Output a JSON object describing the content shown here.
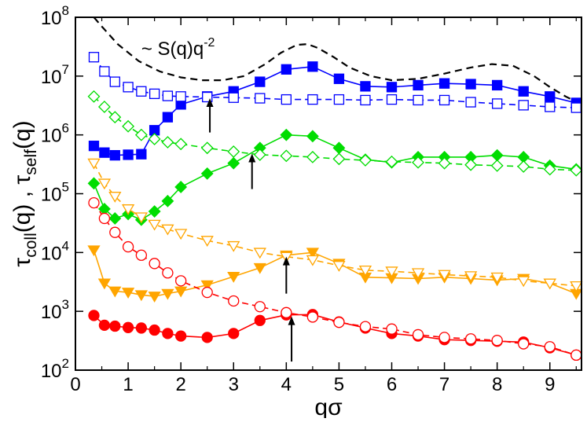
{
  "chart_data": {
    "type": "line",
    "title": "",
    "xlabel": "qσ",
    "ylabel": {
      "tau1": "τ",
      "sub1": "coll",
      "arg1": "(q)",
      "sep": " , ",
      "tau2": "τ",
      "sub2": "self",
      "arg2": "(q)"
    },
    "xlim": [
      0,
      9.6
    ],
    "ylim_log10": [
      2,
      8
    ],
    "yscale": "log",
    "x_ticks": [
      0,
      1,
      2,
      3,
      4,
      5,
      6,
      7,
      8,
      9
    ],
    "y_ticks": [
      {
        "exp": 2,
        "base": "10",
        "sup": "2"
      },
      {
        "exp": 3,
        "base": "10",
        "sup": "3"
      },
      {
        "exp": 4,
        "base": "10",
        "sup": "4"
      },
      {
        "exp": 5,
        "base": "10",
        "sup": "5"
      },
      {
        "exp": 6,
        "base": "10",
        "sup": "6"
      },
      {
        "exp": 7,
        "base": "10",
        "sup": "7"
      },
      {
        "exp": 8,
        "base": "10",
        "sup": "8"
      }
    ],
    "annotation": {
      "prefix": "~ S(q)q",
      "sup": "-2",
      "x": 1.25,
      "y": 30000000
    },
    "arrows": [
      {
        "x": 2.55,
        "y_from": 1100000,
        "y_to": 4200000
      },
      {
        "x": 3.35,
        "y_from": 120000,
        "y_to": 480000
      },
      {
        "x": 4.0,
        "y_from": 2000,
        "y_to": 8500
      },
      {
        "x": 4.1,
        "y_from": 140,
        "y_to": 820
      }
    ],
    "series": [
      {
        "name": "S(q)q^-2",
        "color": "#000000",
        "dash": "9,6",
        "marker": "none",
        "x": [
          0.35,
          0.5,
          0.8,
          1.2,
          1.6,
          2.0,
          2.4,
          2.8,
          3.2,
          3.6,
          3.9,
          4.2,
          4.4,
          4.6,
          4.9,
          5.2,
          5.6,
          6.0,
          6.5,
          7.0,
          7.5,
          7.9,
          8.3,
          8.7,
          9.0,
          9.3,
          9.55
        ],
        "y": [
          100000000,
          70000000,
          35000000,
          18000000,
          12000000,
          9500000,
          8500000,
          8500000,
          10000000,
          16000000,
          25000000,
          34000000,
          35000000,
          30000000,
          21000000,
          14000000,
          10000000,
          8500000,
          9000000,
          11000000,
          14000000,
          16000000,
          15000000,
          10000000,
          6500000,
          4500000,
          3500000
        ]
      },
      {
        "name": "tau_coll blue",
        "color": "#0000ff",
        "dash": "",
        "marker": "square",
        "filled": true,
        "x": [
          0.35,
          0.55,
          0.75,
          1.0,
          1.25,
          1.5,
          1.75,
          2.0,
          2.5,
          3.0,
          3.5,
          4.0,
          4.5,
          5.0,
          5.5,
          6.0,
          6.5,
          7.0,
          7.5,
          8.0,
          8.5,
          9.0,
          9.5
        ],
        "y": [
          650000,
          500000,
          450000,
          460000,
          470000,
          1200000,
          2000000,
          3300000,
          4500000,
          5500000,
          8000000,
          13000000,
          14500000,
          9000000,
          6700000,
          6500000,
          7000000,
          7500000,
          7300000,
          7000000,
          5500000,
          4500000,
          3500000
        ]
      },
      {
        "name": "tau_self blue",
        "color": "#0000ff",
        "dash": "8,5",
        "marker": "square",
        "filled": false,
        "x": [
          0.35,
          0.55,
          0.75,
          1.0,
          1.25,
          1.5,
          1.75,
          2.0,
          2.5,
          3.0,
          3.5,
          4.0,
          4.5,
          5.0,
          5.5,
          6.0,
          6.5,
          7.0,
          7.5,
          8.0,
          8.5,
          9.0,
          9.5
        ],
        "y": [
          21000000,
          12000000,
          8000000,
          6500000,
          5500000,
          5000000,
          4600000,
          4500000,
          4400000,
          4300000,
          4200000,
          4000000,
          4000000,
          4000000,
          3900000,
          4000000,
          3900000,
          3900000,
          3600000,
          3400000,
          3200000,
          3000000,
          2900000
        ]
      },
      {
        "name": "tau_coll green",
        "color": "#00dd00",
        "dash": "",
        "marker": "diamond",
        "filled": true,
        "x": [
          0.35,
          0.55,
          0.75,
          1.0,
          1.25,
          1.5,
          1.75,
          2.0,
          2.5,
          3.0,
          3.5,
          4.0,
          4.5,
          5.0,
          5.5,
          6.0,
          6.5,
          7.0,
          7.5,
          8.0,
          8.5,
          9.0,
          9.5
        ],
        "y": [
          150000,
          55000,
          38000,
          45000,
          36000,
          50000,
          75000,
          130000,
          220000,
          330000,
          600000,
          1000000,
          950000,
          600000,
          380000,
          340000,
          420000,
          420000,
          420000,
          450000,
          420000,
          300000,
          260000
        ]
      },
      {
        "name": "tau_self green",
        "color": "#00dd00",
        "dash": "8,5",
        "marker": "diamond",
        "filled": false,
        "x": [
          0.35,
          0.55,
          0.75,
          1.0,
          1.25,
          1.5,
          1.75,
          2.0,
          2.5,
          3.0,
          3.5,
          4.0,
          4.5,
          5.0,
          5.5,
          6.0,
          6.5,
          7.0,
          7.5,
          8.0,
          8.5,
          9.0,
          9.5
        ],
        "y": [
          4500000,
          3000000,
          2000000,
          1400000,
          1000000,
          850000,
          750000,
          700000,
          600000,
          520000,
          460000,
          440000,
          420000,
          390000,
          370000,
          350000,
          340000,
          330000,
          310000,
          300000,
          290000,
          260000,
          250000
        ]
      },
      {
        "name": "tau_coll orange",
        "color": "#ffa500",
        "dash": "",
        "marker": "triangle-down",
        "filled": true,
        "x": [
          0.35,
          0.55,
          0.75,
          1.0,
          1.25,
          1.5,
          1.75,
          2.0,
          2.5,
          3.0,
          3.5,
          4.0,
          4.5,
          5.0,
          5.5,
          6.0,
          6.5,
          7.0,
          7.5,
          8.0,
          8.5,
          9.0,
          9.5
        ],
        "y": [
          11000,
          3000,
          2200,
          2100,
          1900,
          1800,
          2000,
          2200,
          2800,
          3900,
          5500,
          9000,
          10000,
          6500,
          3800,
          3700,
          3600,
          3800,
          3600,
          3400,
          3600,
          3000,
          2000
        ]
      },
      {
        "name": "tau_self orange",
        "color": "#ffa500",
        "dash": "8,5",
        "marker": "triangle-down",
        "filled": false,
        "x": [
          0.35,
          0.55,
          0.75,
          1.0,
          1.25,
          1.5,
          1.75,
          2.0,
          2.5,
          3.0,
          3.5,
          4.0,
          4.5,
          5.0,
          5.5,
          6.0,
          6.5,
          7.0,
          7.5,
          8.0,
          8.5,
          9.0,
          9.5
        ],
        "y": [
          330000,
          150000,
          90000,
          55000,
          40000,
          30000,
          25000,
          21000,
          16000,
          13000,
          10000,
          8500,
          7500,
          6000,
          5000,
          4800,
          4500,
          4200,
          4000,
          3800,
          3300,
          3000,
          2700
        ]
      },
      {
        "name": "tau_coll red",
        "color": "#ff0000",
        "dash": "",
        "marker": "circle",
        "filled": true,
        "x": [
          0.35,
          0.55,
          0.75,
          1.0,
          1.25,
          1.5,
          1.75,
          2.0,
          2.5,
          3.0,
          3.5,
          4.0,
          4.5,
          5.0,
          5.5,
          6.0,
          6.5,
          7.0,
          7.5,
          8.0,
          8.5,
          9.0,
          9.5
        ],
        "y": [
          850,
          580,
          560,
          530,
          520,
          480,
          420,
          380,
          360,
          420,
          700,
          870,
          880,
          660,
          520,
          420,
          380,
          330,
          320,
          310,
          300,
          240,
          180
        ]
      },
      {
        "name": "tau_self red",
        "color": "#ff0000",
        "dash": "8,5",
        "marker": "circle",
        "filled": false,
        "x": [
          0.35,
          0.55,
          0.75,
          1.0,
          1.25,
          1.5,
          1.75,
          2.0,
          2.5,
          3.0,
          3.5,
          4.0,
          4.5,
          5.0,
          5.5,
          6.0,
          6.5,
          7.0,
          7.5,
          8.0,
          8.5,
          9.0,
          9.5
        ],
        "y": [
          70000,
          38000,
          22000,
          12500,
          9000,
          6500,
          4500,
          3300,
          2100,
          1500,
          1200,
          950,
          800,
          650,
          550,
          500,
          400,
          360,
          340,
          320,
          280,
          250,
          180
        ]
      }
    ]
  }
}
